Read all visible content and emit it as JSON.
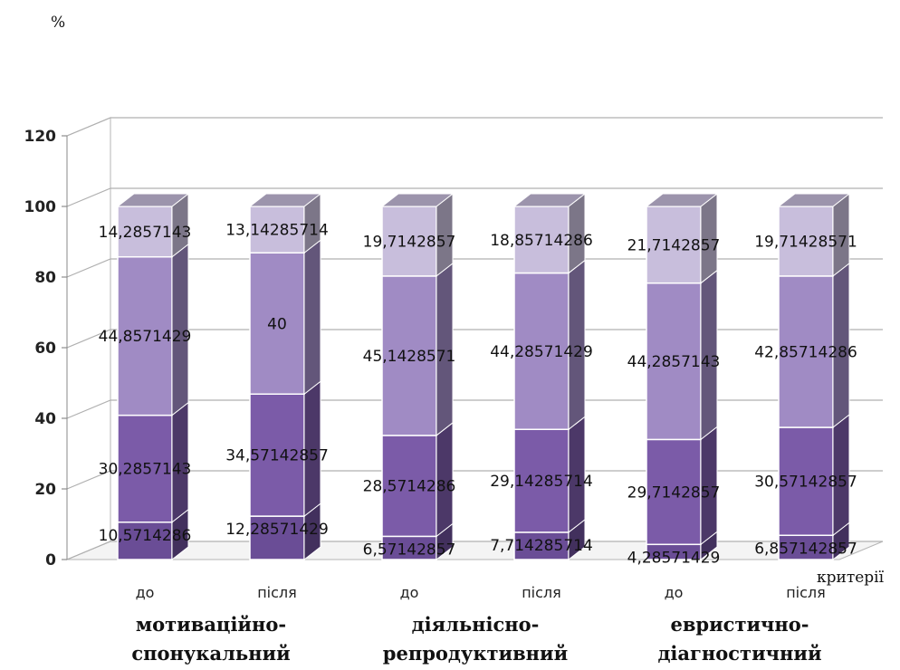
{
  "chart_data": {
    "type": "bar",
    "stacked": true,
    "three_d": true,
    "y_unit": "%",
    "x_axis_name": "критерії",
    "ylim": [
      0,
      120
    ],
    "y_ticks": [
      0,
      20,
      40,
      60,
      80,
      100,
      120
    ],
    "categories": [
      "до",
      "після",
      "до",
      "після",
      "до",
      "після"
    ],
    "groups": [
      "мотиваційно-спонукальний",
      "діяльнісно-репродуктивний",
      "евристично-діагностичний"
    ],
    "group_lines": [
      [
        "мотиваційно-",
        "спонукальний"
      ],
      [
        "діяльнісно-",
        "репродуктивний"
      ],
      [
        "евристично-",
        "діагностичний"
      ]
    ],
    "series": [
      {
        "values": [
          10.5714286,
          12.28571429,
          6.57142857,
          7.714285714,
          4.28571429,
          6.857142857
        ],
        "labels": [
          "10,5714286",
          "12,28571429",
          "6,57142857",
          "7,714285714",
          "4,28571429",
          "6,857142857"
        ],
        "color": "#6a4d96"
      },
      {
        "values": [
          30.2857143,
          34.57142857,
          28.5714286,
          29.14285714,
          29.7142857,
          30.57142857
        ],
        "labels": [
          "30,2857143",
          "34,57142857",
          "28,5714286",
          "29,14285714",
          "29,7142857",
          "30,57142857"
        ],
        "color": "#7b5ba8"
      },
      {
        "values": [
          44.8571429,
          40,
          45.1428571,
          44.28571429,
          44.2857143,
          42.85714286
        ],
        "labels": [
          "44,8571429",
          "40",
          "45,1428571",
          "44,28571429",
          "44,2857143",
          "42,85714286"
        ],
        "color": "#a08bc4"
      },
      {
        "values": [
          14.2857143,
          13.14285714,
          19.7142857,
          18.85714286,
          21.7142857,
          19.71428571
        ],
        "labels": [
          "14,2857143",
          "13,14285714",
          "19,7142857",
          "18,85714286",
          "21,7142857",
          "19,71428571"
        ],
        "color": "#c8bedc"
      }
    ],
    "grid": true
  }
}
